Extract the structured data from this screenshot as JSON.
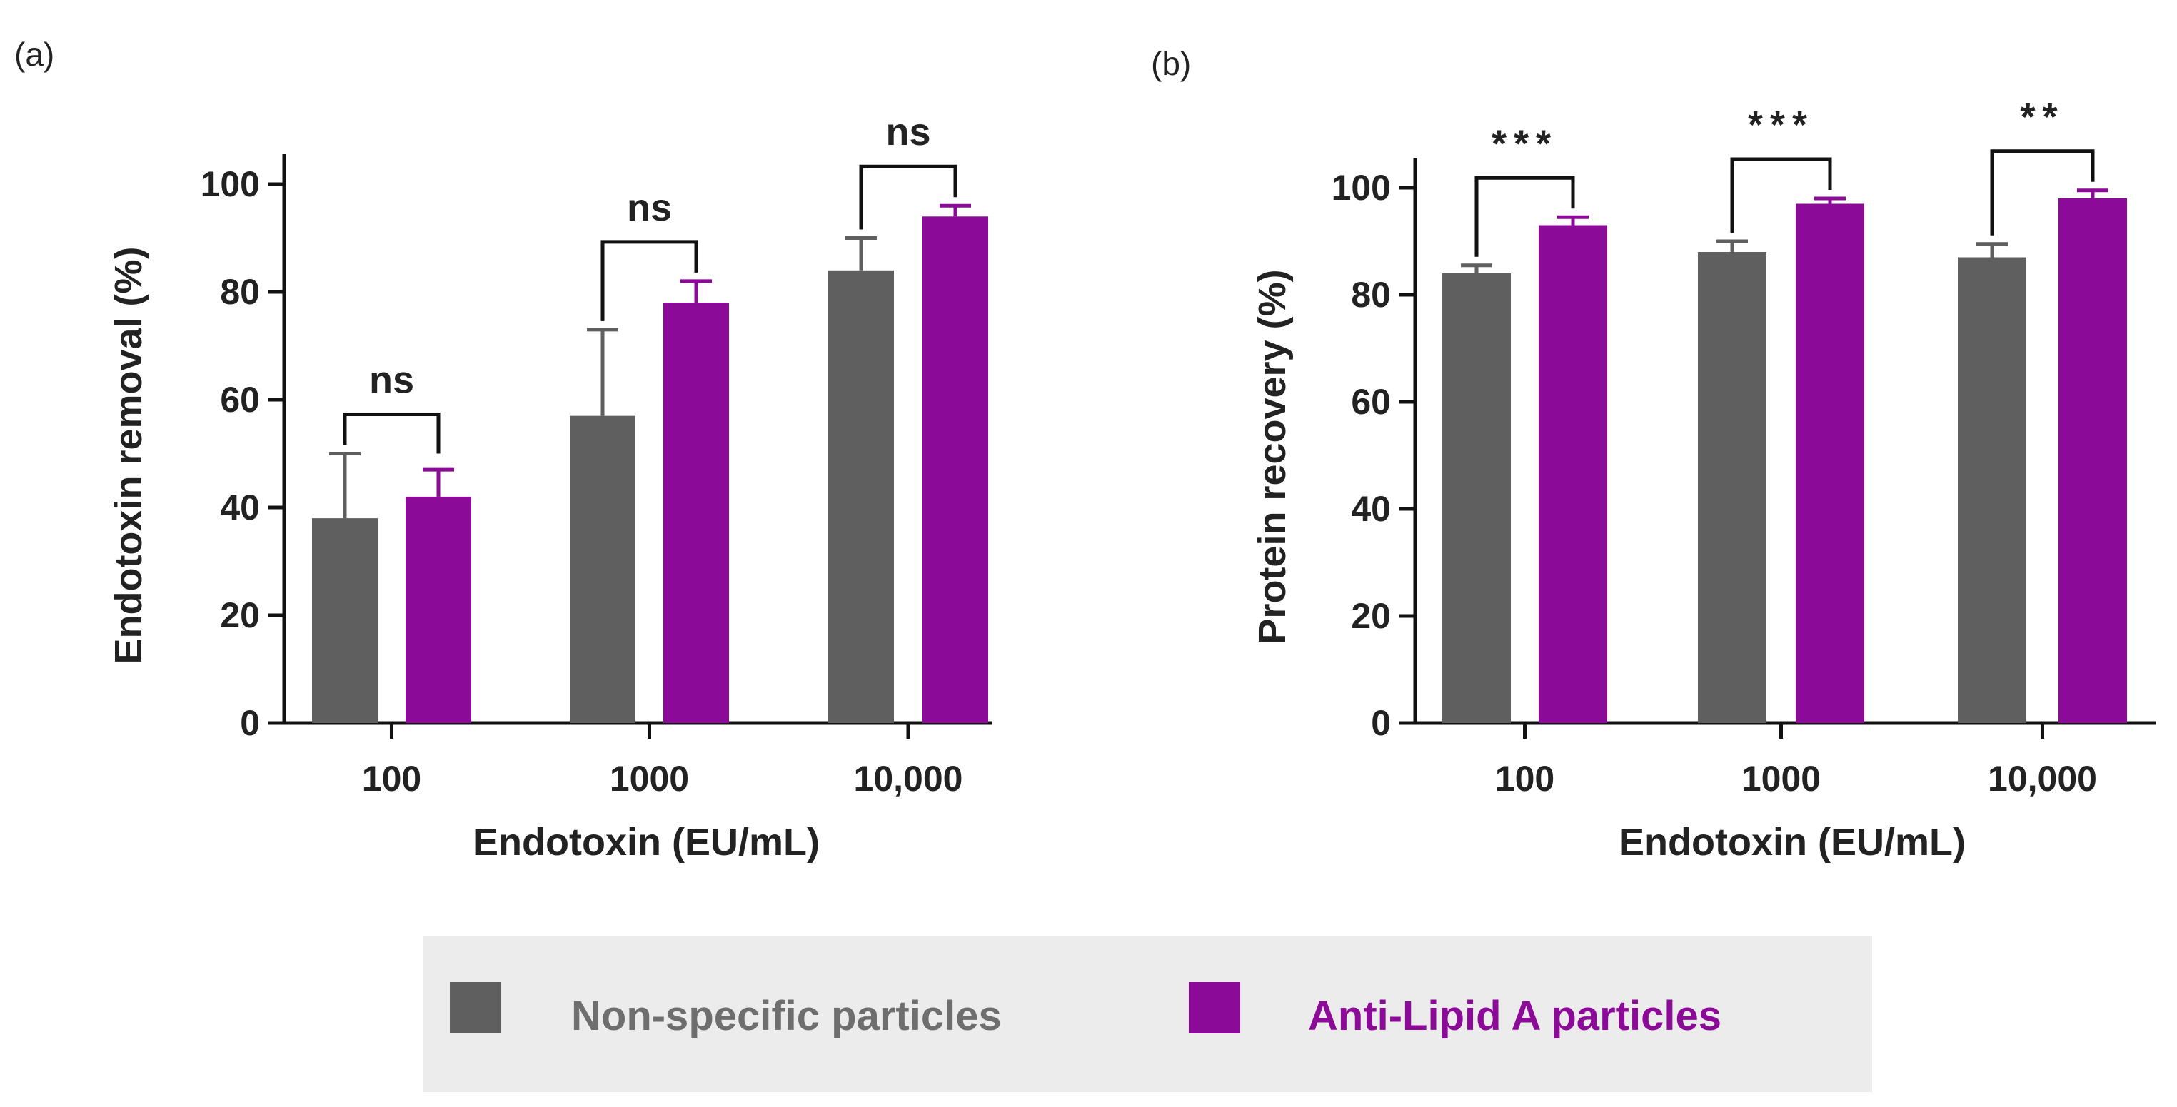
{
  "chart_data": [
    {
      "panel": "(a)",
      "type": "bar",
      "categories": [
        "100",
        "1000",
        "10,000"
      ],
      "xlabel": "Endotoxin (EU/mL)",
      "ylabel": "Endotoxin removal (%)",
      "ylim": [
        0,
        100
      ],
      "yticks": [
        "0",
        "20",
        "40",
        "60",
        "80",
        "100"
      ],
      "series": [
        {
          "name": "Non-specific particles",
          "color": "#5f5f5f",
          "values": [
            38,
            57,
            84
          ],
          "errors": [
            12,
            16,
            6
          ]
        },
        {
          "name": "Anti-Lipid A particles",
          "color": "#8b0a97",
          "values": [
            42,
            78,
            94
          ],
          "errors": [
            5,
            4,
            2
          ]
        }
      ],
      "significance": [
        "ns",
        "ns",
        "ns"
      ]
    },
    {
      "panel": "(b)",
      "type": "bar",
      "categories": [
        "100",
        "1000",
        "10,000"
      ],
      "xlabel": "Endotoxin (EU/mL)",
      "ylabel": "Protein recovery (%)",
      "ylim": [
        0,
        100
      ],
      "yticks": [
        "0",
        "20",
        "40",
        "60",
        "80",
        "100"
      ],
      "series": [
        {
          "name": "Non-specific particles",
          "color": "#5f5f5f",
          "values": [
            84,
            88,
            87
          ],
          "errors": [
            1.5,
            2,
            2.5
          ]
        },
        {
          "name": "Anti-Lipid A particles",
          "color": "#8b0a97",
          "values": [
            93,
            97,
            98
          ],
          "errors": [
            1.5,
            1,
            1.5
          ]
        }
      ],
      "significance": [
        "***",
        "***",
        "**"
      ]
    }
  ],
  "legend": {
    "items": [
      {
        "label": "Non-specific particles",
        "color": "#5f5f5f",
        "text_color": "#6e6e6e"
      },
      {
        "label": "Anti-Lipid A particles",
        "color": "#8b0a97",
        "text_color": "#8b0a97"
      }
    ]
  }
}
